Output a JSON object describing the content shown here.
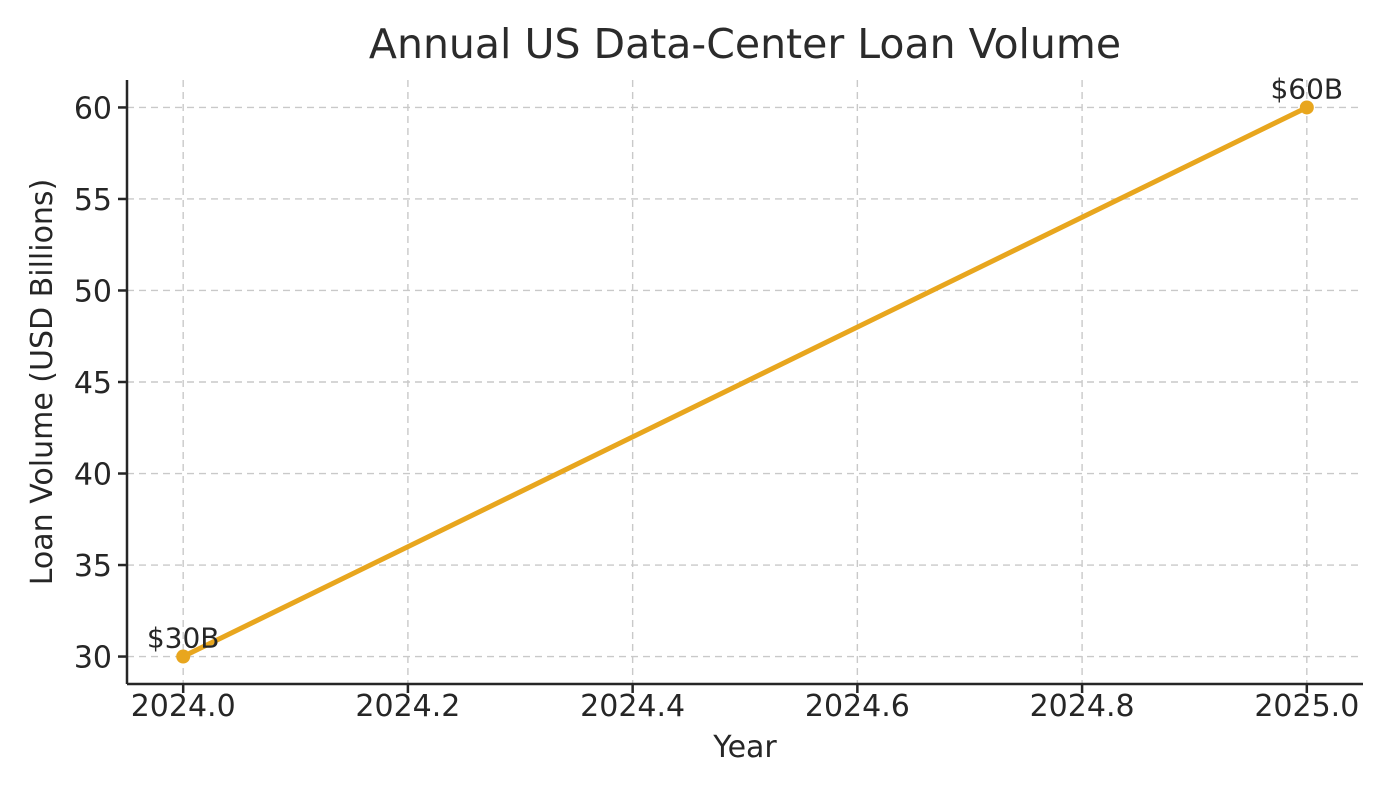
{
  "chart_data": {
    "type": "line",
    "title": "Annual US Data-Center Loan Volume",
    "xlabel": "Year",
    "ylabel": "Loan Volume (USD Billions)",
    "x": [
      2024,
      2025
    ],
    "values": [
      30,
      60
    ],
    "series": [
      {
        "name": "Annual US data-center loan volume",
        "x": [
          2024,
          2025
        ],
        "values": [
          30,
          60
        ]
      }
    ],
    "annotations": [
      {
        "x": 2024,
        "y": 30,
        "label": "$30B"
      },
      {
        "x": 2025,
        "y": 60,
        "label": "$60B"
      }
    ],
    "xticks": [
      2024.0,
      2024.2,
      2024.4,
      2024.6,
      2024.8,
      2025.0
    ],
    "xtick_labels": [
      "2024.0",
      "2024.2",
      "2024.4",
      "2024.6",
      "2024.8",
      "2025.0"
    ],
    "yticks": [
      30,
      35,
      40,
      45,
      50,
      55,
      60
    ],
    "ytick_labels": [
      "30",
      "35",
      "40",
      "45",
      "50",
      "55",
      "60"
    ],
    "xlim": [
      2023.95,
      2025.05
    ],
    "ylim": [
      28.5,
      61.5
    ],
    "grid": true,
    "grid_style": "dashed",
    "legend": "none",
    "colors": {
      "line": "#E8A61E",
      "marker": "#E8A61E",
      "grid": "#C9C9C9",
      "spine": "#262626",
      "text": "#262626",
      "background": "#FFFFFF"
    }
  }
}
